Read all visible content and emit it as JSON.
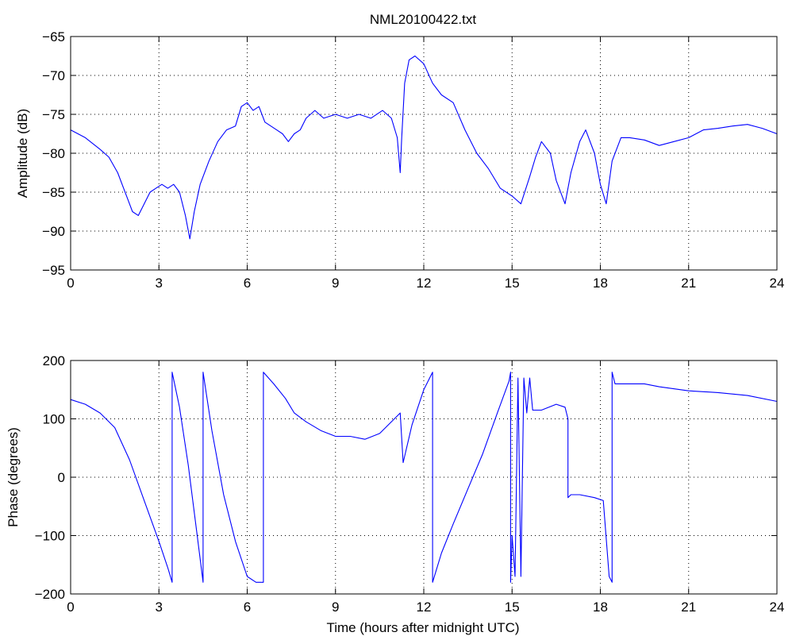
{
  "chart_data": [
    {
      "type": "line",
      "title": "NML20100422.txt",
      "xlabel": "",
      "ylabel": "Amplitude (dB)",
      "xlim": [
        0,
        24
      ],
      "ylim": [
        -95,
        -65
      ],
      "xticks": [
        0,
        3,
        6,
        9,
        12,
        15,
        18,
        21,
        24
      ],
      "yticks": [
        -95,
        -90,
        -85,
        -80,
        -75,
        -70,
        -65
      ],
      "grid": true,
      "series_color": "#0000ff",
      "x": [
        0,
        0.5,
        1.0,
        1.3,
        1.6,
        1.9,
        2.1,
        2.3,
        2.5,
        2.7,
        2.9,
        3.1,
        3.3,
        3.5,
        3.7,
        3.9,
        4.05,
        4.2,
        4.4,
        4.7,
        5.0,
        5.3,
        5.6,
        5.8,
        6.0,
        6.2,
        6.4,
        6.6,
        6.8,
        7.0,
        7.2,
        7.4,
        7.6,
        7.8,
        8.0,
        8.3,
        8.6,
        9.0,
        9.4,
        9.8,
        10.2,
        10.6,
        10.9,
        11.1,
        11.2,
        11.25,
        11.35,
        11.5,
        11.7,
        12.0,
        12.3,
        12.6,
        13.0,
        13.4,
        13.8,
        14.2,
        14.6,
        15.0,
        15.3,
        15.6,
        15.8,
        16.0,
        16.3,
        16.5,
        16.8,
        17.0,
        17.3,
        17.5,
        17.8,
        18.0,
        18.2,
        18.4,
        18.7,
        19.0,
        19.5,
        20.0,
        20.5,
        21.0,
        21.5,
        22.0,
        22.5,
        23.0,
        23.5,
        24.0
      ],
      "y": [
        -77,
        -78,
        -79.5,
        -80.5,
        -82.5,
        -85.5,
        -87.5,
        -88,
        -86.5,
        -85,
        -84.5,
        -84,
        -84.5,
        -84,
        -85,
        -88,
        -91,
        -87.5,
        -84,
        -81,
        -78.5,
        -77,
        -76.5,
        -74,
        -73.5,
        -74.5,
        -74,
        -76,
        -76.5,
        -77,
        -77.5,
        -78.5,
        -77.5,
        -77,
        -75.5,
        -74.5,
        -75.5,
        -75,
        -75.5,
        -75,
        -75.5,
        -74.5,
        -75.5,
        -78,
        -82.5,
        -78,
        -71,
        -68,
        -67.5,
        -68.5,
        -71,
        -72.5,
        -73.5,
        -77,
        -80,
        -82,
        -84.5,
        -85.5,
        -86.5,
        -83,
        -80.5,
        -78.5,
        -80,
        -83.5,
        -86.5,
        -82.5,
        -78.5,
        -77,
        -80,
        -84,
        -86.5,
        -81,
        -78,
        -78,
        -78.3,
        -79,
        -78.5,
        -78,
        -77,
        -76.8,
        -76.5,
        -76.3,
        -76.8,
        -77.5
      ]
    },
    {
      "type": "line",
      "title": "",
      "xlabel": "Time (hours after midnight UTC)",
      "ylabel": "Phase (degrees)",
      "xlim": [
        0,
        24
      ],
      "ylim": [
        -200,
        200
      ],
      "xticks": [
        0,
        3,
        6,
        9,
        12,
        15,
        18,
        21,
        24
      ],
      "yticks": [
        -200,
        -100,
        0,
        100,
        200
      ],
      "grid": true,
      "series_color": "#0000ff",
      "x": [
        0,
        0.5,
        1.0,
        1.5,
        2.0,
        2.5,
        3.0,
        3.3,
        3.45,
        3.45,
        3.7,
        4.0,
        4.3,
        4.5,
        4.5,
        4.8,
        5.2,
        5.6,
        6.0,
        6.3,
        6.55,
        6.55,
        6.9,
        7.3,
        7.6,
        8.0,
        8.5,
        9.0,
        9.5,
        10.0,
        10.5,
        11.0,
        11.2,
        11.3,
        11.6,
        12.0,
        12.3,
        12.3,
        12.6,
        13.0,
        13.5,
        14.0,
        14.5,
        14.9,
        14.95,
        14.95,
        15.0,
        15.1,
        15.2,
        15.3,
        15.4,
        15.5,
        15.6,
        15.7,
        16.0,
        16.5,
        16.8,
        16.9,
        16.9,
        17.0,
        17.3,
        17.8,
        18.1,
        18.3,
        18.4,
        18.4,
        18.5,
        19.0,
        19.5,
        20.0,
        21.0,
        22.0,
        23.0,
        24.0
      ],
      "y": [
        133,
        125,
        110,
        85,
        30,
        -40,
        -110,
        -155,
        -180,
        180,
        120,
        20,
        -100,
        -180,
        180,
        80,
        -30,
        -110,
        -170,
        -180,
        -180,
        180,
        160,
        135,
        110,
        95,
        80,
        70,
        70,
        65,
        75,
        100,
        110,
        25,
        90,
        150,
        180,
        -180,
        -130,
        -80,
        -20,
        40,
        110,
        165,
        180,
        -180,
        -100,
        -170,
        170,
        -170,
        170,
        110,
        170,
        115,
        115,
        125,
        120,
        100,
        -35,
        -30,
        -30,
        -35,
        -40,
        -170,
        -180,
        180,
        160,
        160,
        160,
        155,
        148,
        145,
        140,
        130
      ]
    }
  ]
}
